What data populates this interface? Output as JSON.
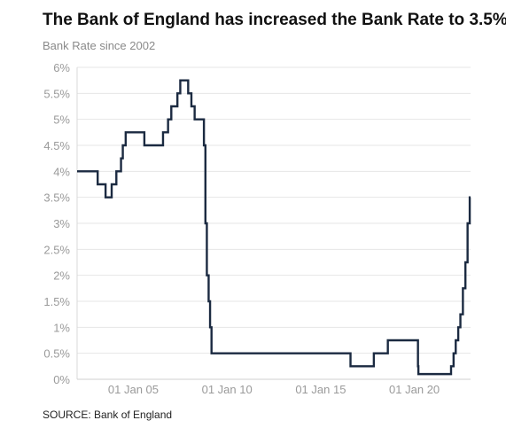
{
  "chart_data": {
    "type": "line",
    "title": "The Bank of England has increased the Bank Rate to 3.5%",
    "subtitle": "Bank Rate since 2002",
    "source": "SOURCE: Bank of England",
    "ylim": [
      0,
      6
    ],
    "yticks": [
      0,
      0.5,
      1,
      1.5,
      2,
      2.5,
      3,
      3.5,
      4,
      4.5,
      5,
      5.5,
      6
    ],
    "ytick_labels": [
      "0%",
      "0.5%",
      "1%",
      "1.5%",
      "2%",
      "2.5%",
      "3%",
      "3.5%",
      "4%",
      "4.5%",
      "5%",
      "5.5%",
      "6%"
    ],
    "xlim": [
      "2002-01-01",
      "2022-12-31"
    ],
    "xticks": [
      "2005-01-01",
      "2010-01-01",
      "2015-01-01",
      "2020-01-01"
    ],
    "xtick_labels": [
      "01 Jan 05",
      "01 Jan 10",
      "01 Jan 15",
      "01 Jan 20"
    ],
    "grid": {
      "horizontal": true,
      "vertical": false
    },
    "line_color": "#1b2a41",
    "series": [
      {
        "step": true,
        "points": [
          [
            "2002-01-01",
            4.0
          ],
          [
            "2003-02-06",
            3.75
          ],
          [
            "2003-07-10",
            3.5
          ],
          [
            "2003-11-06",
            3.75
          ],
          [
            "2004-02-05",
            4.0
          ],
          [
            "2004-05-06",
            4.25
          ],
          [
            "2004-06-10",
            4.5
          ],
          [
            "2004-08-05",
            4.75
          ],
          [
            "2005-08-04",
            4.5
          ],
          [
            "2006-08-03",
            4.75
          ],
          [
            "2006-11-09",
            5.0
          ],
          [
            "2007-01-11",
            5.25
          ],
          [
            "2007-05-10",
            5.5
          ],
          [
            "2007-07-05",
            5.75
          ],
          [
            "2007-12-06",
            5.5
          ],
          [
            "2008-02-07",
            5.25
          ],
          [
            "2008-04-10",
            5.0
          ],
          [
            "2008-10-08",
            4.5
          ],
          [
            "2008-11-06",
            3.0
          ],
          [
            "2008-12-04",
            2.0
          ],
          [
            "2009-01-08",
            1.5
          ],
          [
            "2009-02-05",
            1.0
          ],
          [
            "2009-03-05",
            0.5
          ],
          [
            "2016-08-04",
            0.25
          ],
          [
            "2017-11-02",
            0.5
          ],
          [
            "2018-08-02",
            0.75
          ],
          [
            "2020-03-11",
            0.25
          ],
          [
            "2020-03-19",
            0.1
          ],
          [
            "2021-12-16",
            0.25
          ],
          [
            "2022-02-03",
            0.5
          ],
          [
            "2022-03-17",
            0.75
          ],
          [
            "2022-05-05",
            1.0
          ],
          [
            "2022-06-16",
            1.25
          ],
          [
            "2022-08-04",
            1.75
          ],
          [
            "2022-09-22",
            2.25
          ],
          [
            "2022-11-03",
            3.0
          ],
          [
            "2022-12-15",
            3.5
          ]
        ]
      }
    ]
  }
}
